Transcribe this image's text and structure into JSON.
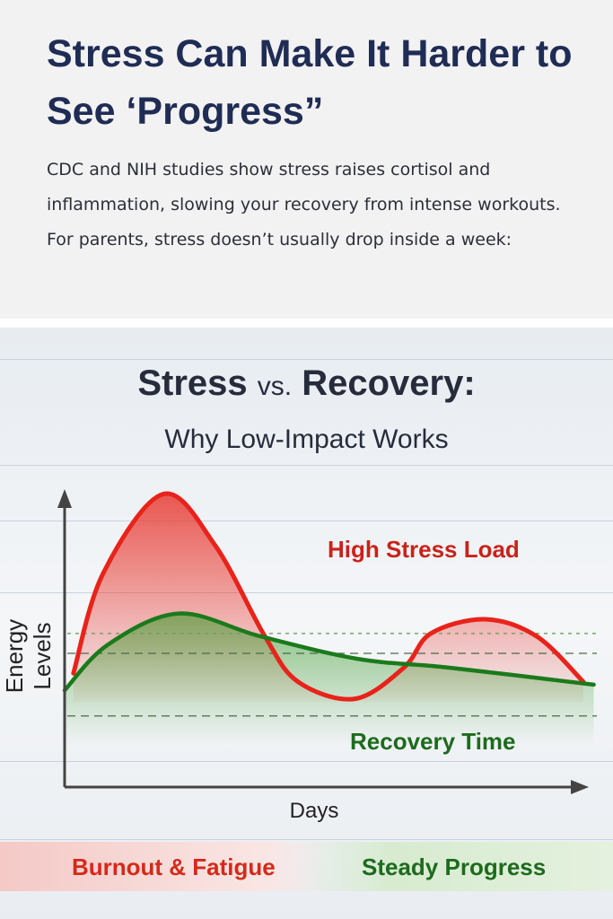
{
  "header": {
    "title": "Stress Can Make It Harder to See ‘Progress”",
    "intro": "CDC and NIH studies show stress raises cortisol and inflammation, slowing your recovery from intense workouts. For parents, stress doesn’t usually drop inside a week:"
  },
  "chart_data": {
    "type": "area",
    "title": "Stress vs. Recovery:",
    "title_parts": {
      "a": "Stress",
      "vs": "vs.",
      "b": "Recovery:"
    },
    "subtitle": "Why Low-Impact Works",
    "xlabel": "Days",
    "ylabel": "Energy Levels",
    "xlim": [
      0,
      10
    ],
    "ylim": [
      0,
      10
    ],
    "grid": true,
    "series": [
      {
        "name": "High Stress Load",
        "color": "#e8231a",
        "points": [
          [
            0.17,
            4.0
          ],
          [
            0.74,
            7.5
          ],
          [
            1.9,
            10.3
          ],
          [
            2.9,
            8.5
          ],
          [
            3.86,
            5.3
          ],
          [
            4.5,
            3.7
          ],
          [
            5.59,
            3.1
          ],
          [
            6.54,
            4.2
          ],
          [
            7.06,
            5.4
          ],
          [
            8.1,
            5.9
          ],
          [
            9.1,
            5.3
          ],
          [
            10,
            3.7
          ]
        ]
      },
      {
        "name": "Recovery Time",
        "color": "#1b7a1b",
        "points": [
          [
            0,
            3.4
          ],
          [
            0.83,
            5.0
          ],
          [
            2.2,
            6.1
          ],
          [
            3.77,
            5.3
          ],
          [
            5.67,
            4.5
          ],
          [
            7.4,
            4.2
          ],
          [
            10.2,
            3.6
          ]
        ]
      }
    ],
    "reference_lines": [
      5.4,
      4.7,
      2.5
    ],
    "annotations": {
      "stress": "High Stress Load",
      "recovery": "Recovery Time"
    }
  },
  "footer": {
    "left": "Burnout & Fatigue",
    "left_color": "#d42a1a",
    "right": "Steady Progress",
    "right_color": "#1d6b1d"
  }
}
